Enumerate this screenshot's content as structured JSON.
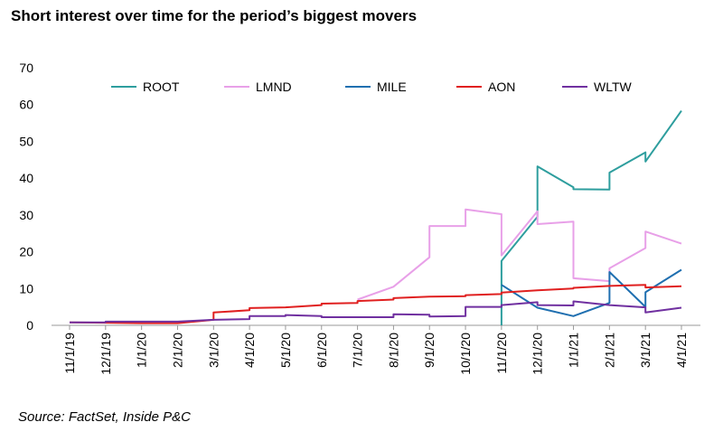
{
  "chart_data": {
    "type": "line",
    "title": "Short interest over time for the period’s biggest movers",
    "source": "Source: FactSet, Inside P&C",
    "xlabel": "",
    "ylabel": "",
    "ylim": [
      0,
      70
    ],
    "yticks": [
      0,
      10,
      20,
      30,
      40,
      50,
      60,
      70
    ],
    "x_tick_labels": [
      "11/1/19",
      "12/1/19",
      "1/1/20",
      "2/1/20",
      "3/1/20",
      "4/1/20",
      "5/1/20",
      "6/1/20",
      "7/1/20",
      "8/1/20",
      "9/1/20",
      "10/1/20",
      "11/1/20",
      "12/1/20",
      "1/1/21",
      "2/1/21",
      "3/1/21",
      "4/1/21"
    ],
    "grid": false,
    "legend_position": "top",
    "series": [
      {
        "name": "ROOT",
        "color": "#2e9e9e",
        "points": [
          [
            12,
            0
          ],
          [
            12,
            17.5
          ],
          [
            13,
            29.5
          ],
          [
            13,
            43.2
          ],
          [
            14,
            37.5
          ],
          [
            14,
            37
          ],
          [
            15,
            36.9
          ],
          [
            15,
            41.5
          ],
          [
            16,
            47
          ],
          [
            16,
            44.5
          ],
          [
            17,
            58.3
          ]
        ]
      },
      {
        "name": "LMND",
        "color": "#e8a0e8",
        "points": [
          [
            8,
            7
          ],
          [
            9,
            10.5
          ],
          [
            10,
            18.5
          ],
          [
            10,
            27
          ],
          [
            11,
            27
          ],
          [
            11,
            31.5
          ],
          [
            12,
            30.2
          ],
          [
            12,
            19
          ],
          [
            13,
            31
          ],
          [
            13,
            27.5
          ],
          [
            14,
            28.2
          ],
          [
            14,
            12.8
          ],
          [
            15,
            12
          ],
          [
            15,
            15.5
          ],
          [
            16,
            21
          ],
          [
            16,
            25.5
          ],
          [
            17,
            22.2
          ]
        ]
      },
      {
        "name": "MILE",
        "color": "#1f6fb0",
        "points": [
          [
            12,
            11
          ],
          [
            13,
            4.8
          ],
          [
            14,
            2.5
          ],
          [
            15,
            6.1
          ],
          [
            15,
            14.5
          ],
          [
            16,
            5
          ],
          [
            16,
            9
          ],
          [
            17,
            15.1
          ]
        ]
      },
      {
        "name": "AON",
        "color": "#e02020",
        "points": [
          [
            0,
            0.8
          ],
          [
            1,
            0.7
          ],
          [
            2,
            0.6
          ],
          [
            3,
            0.6
          ],
          [
            4,
            1.5
          ],
          [
            4,
            3.5
          ],
          [
            5,
            4.1
          ],
          [
            5,
            4.7
          ],
          [
            6,
            4.9
          ],
          [
            7,
            5.5
          ],
          [
            7,
            5.9
          ],
          [
            8,
            6.1
          ],
          [
            8,
            6.6
          ],
          [
            9,
            7
          ],
          [
            9,
            7.4
          ],
          [
            10,
            7.8
          ],
          [
            11,
            7.9
          ],
          [
            11,
            8.2
          ],
          [
            12,
            8.5
          ],
          [
            12,
            8.9
          ],
          [
            13,
            9.5
          ],
          [
            14,
            10
          ],
          [
            14,
            10.2
          ],
          [
            15,
            10.7
          ],
          [
            16,
            11
          ],
          [
            16,
            10.3
          ],
          [
            17,
            10.6
          ]
        ]
      },
      {
        "name": "WLTW",
        "color": "#7030a0",
        "points": [
          [
            0,
            0.8
          ],
          [
            1,
            0.8
          ],
          [
            1,
            1
          ],
          [
            2,
            1
          ],
          [
            3,
            1
          ],
          [
            4,
            1.5
          ],
          [
            5,
            1.7
          ],
          [
            5,
            2.5
          ],
          [
            6,
            2.5
          ],
          [
            6,
            2.8
          ],
          [
            7,
            2.5
          ],
          [
            7,
            2.2
          ],
          [
            8,
            2.2
          ],
          [
            9,
            2.2
          ],
          [
            9,
            3
          ],
          [
            10,
            2.9
          ],
          [
            10,
            2.4
          ],
          [
            11,
            2.5
          ],
          [
            11,
            5
          ],
          [
            12,
            5
          ],
          [
            12,
            5.5
          ],
          [
            13,
            6.3
          ],
          [
            13,
            5.5
          ],
          [
            14,
            5.4
          ],
          [
            14,
            6.5
          ],
          [
            15,
            5.5
          ],
          [
            16,
            4.9
          ],
          [
            16,
            3.5
          ],
          [
            17,
            4.8
          ]
        ]
      }
    ]
  }
}
